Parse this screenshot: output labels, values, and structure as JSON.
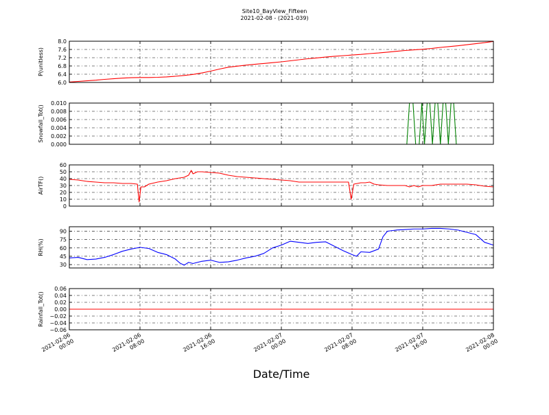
{
  "figure": {
    "title": "Site10_BayView_Fifteen",
    "subtitle": "2021-02-08 - (2021-039)",
    "xlabel": "Date/Time",
    "x_ticks": [
      [
        "2021-02-06",
        "00:00"
      ],
      [
        "2021-02-06",
        "08:00"
      ],
      [
        "2021-02-06",
        "16:00"
      ],
      [
        "2021-02-07",
        "00:00"
      ],
      [
        "2021-02-07",
        "08:00"
      ],
      [
        "2021-02-07",
        "16:00"
      ],
      [
        "2021-02-08",
        "00:00"
      ]
    ]
  },
  "chart_data": [
    {
      "type": "line",
      "ylabel": "P(unitless)",
      "xlim": [
        0,
        48
      ],
      "ylim": [
        6.0,
        8.0
      ],
      "yticks": [
        "6.0",
        "6.4",
        "6.8",
        "7.2",
        "7.6",
        "8.0"
      ],
      "ytick_values": [
        6.0,
        6.4,
        6.8,
        7.2,
        7.6,
        8.0
      ],
      "grid": true,
      "series": [
        {
          "color": "#ff0000",
          "x": [
            0,
            1,
            2,
            3,
            4,
            5,
            6,
            7,
            8,
            9,
            10,
            11,
            12,
            13,
            14,
            15,
            16,
            17,
            18,
            19,
            20,
            21,
            22,
            23,
            24,
            25,
            26,
            27,
            28,
            29,
            30,
            31,
            32,
            33,
            34,
            35,
            36,
            37,
            38,
            39,
            40,
            41,
            42,
            43,
            44,
            45,
            46,
            47,
            48
          ],
          "y": [
            6.02,
            6.05,
            6.08,
            6.11,
            6.15,
            6.18,
            6.21,
            6.23,
            6.24,
            6.24,
            6.25,
            6.27,
            6.3,
            6.34,
            6.39,
            6.46,
            6.55,
            6.65,
            6.74,
            6.79,
            6.84,
            6.88,
            6.92,
            6.96,
            7.0,
            7.05,
            7.1,
            7.15,
            7.19,
            7.23,
            7.27,
            7.3,
            7.33,
            7.36,
            7.4,
            7.43,
            7.47,
            7.51,
            7.55,
            7.58,
            7.61,
            7.65,
            7.7,
            7.74,
            7.78,
            7.83,
            7.88,
            7.93,
            7.99
          ]
        }
      ]
    },
    {
      "type": "line",
      "ylabel": "Snowfall_Tot()",
      "xlim": [
        0,
        48
      ],
      "ylim": [
        0.0,
        0.01
      ],
      "yticks": [
        "0.000",
        "0.002",
        "0.004",
        "0.006",
        "0.008",
        "0.010"
      ],
      "ytick_values": [
        0.0,
        0.002,
        0.004,
        0.006,
        0.008,
        0.01
      ],
      "grid": true,
      "series": [
        {
          "color": "#008000",
          "x": [
            0,
            38.2,
            38.5,
            38.9,
            39.2,
            39.6,
            39.9,
            40.2,
            40.5,
            40.8,
            41.1,
            41.4,
            41.7,
            42.0,
            42.3,
            42.6,
            42.9,
            43.2,
            43.5,
            43.8,
            48
          ],
          "y": [
            0,
            0,
            0.01,
            0.01,
            0,
            0,
            0.01,
            0,
            0.01,
            0.01,
            0,
            0.01,
            0.01,
            0,
            0.01,
            0.01,
            0,
            0.01,
            0.01,
            0,
            0
          ]
        }
      ]
    },
    {
      "type": "line",
      "ylabel": "AirTF()",
      "xlim": [
        0,
        48
      ],
      "ylim": [
        0,
        60
      ],
      "yticks": [
        "0",
        "10",
        "20",
        "30",
        "40",
        "50",
        "60"
      ],
      "ytick_values": [
        0,
        10,
        20,
        30,
        40,
        50,
        60
      ],
      "grid": true,
      "series": [
        {
          "color": "#ff0000",
          "x": [
            0,
            1,
            2,
            3,
            4,
            5,
            6,
            7,
            7.7,
            7.9,
            8.1,
            8.5,
            9,
            10,
            11,
            12,
            13,
            13.5,
            13.8,
            14,
            14.5,
            15,
            16,
            17,
            18,
            19,
            20,
            21,
            22,
            23,
            24,
            25,
            26,
            27,
            28,
            29,
            30,
            31,
            31.6,
            31.9,
            32.2,
            32.6,
            33,
            33.5,
            34,
            34.5,
            35,
            36,
            37,
            38,
            38.5,
            39,
            39.5,
            40,
            41,
            42,
            43,
            44,
            45,
            46,
            47,
            48
          ],
          "y": [
            39,
            38,
            36,
            35,
            34,
            34,
            33,
            33,
            32,
            6,
            28,
            28,
            32,
            35,
            37,
            40,
            42,
            45,
            52,
            47,
            50,
            50,
            49,
            48,
            45,
            43,
            42,
            41,
            40,
            39,
            38,
            37,
            35,
            35,
            35,
            35,
            35,
            35,
            35,
            10,
            32,
            33,
            34,
            34,
            35,
            32,
            31,
            30,
            30,
            30,
            28,
            30,
            28,
            30,
            30,
            32,
            32,
            32,
            32,
            31,
            29,
            28
          ]
        }
      ]
    },
    {
      "type": "line",
      "ylabel": "RH(%)",
      "xlim": [
        0,
        48
      ],
      "ylim": [
        24,
        98
      ],
      "yticks": [
        "30",
        "45",
        "60",
        "75",
        "90"
      ],
      "ytick_values": [
        30,
        45,
        60,
        75,
        90
      ],
      "grid": true,
      "series": [
        {
          "color": "#0000ff",
          "x": [
            0,
            1,
            2,
            3,
            4,
            5,
            6,
            7,
            8,
            9,
            10,
            11,
            12,
            12.5,
            13,
            13.5,
            14,
            15,
            16,
            17,
            18,
            19,
            20,
            21,
            22,
            23,
            24,
            25,
            26,
            27,
            28,
            29,
            30,
            31,
            32,
            32.5,
            33,
            34,
            35,
            35.5,
            36,
            37,
            38,
            39,
            40,
            41,
            42,
            43,
            44,
            45,
            46,
            47,
            48
          ],
          "y": [
            42,
            43,
            39,
            40,
            43,
            48,
            54,
            58,
            61,
            59,
            52,
            48,
            40,
            33,
            29,
            34,
            32,
            36,
            38,
            34,
            35,
            38,
            42,
            45,
            50,
            60,
            65,
            72,
            70,
            68,
            70,
            71,
            63,
            55,
            48,
            45,
            53,
            52,
            58,
            80,
            90,
            92,
            93,
            94,
            94,
            95,
            95,
            94,
            92,
            88,
            84,
            70,
            65
          ]
        }
      ]
    },
    {
      "type": "line",
      "ylabel": "Rainfall_Tot()",
      "xlim": [
        0,
        48
      ],
      "ylim": [
        -0.06,
        0.06
      ],
      "yticks": [
        "−0.06",
        "−0.04",
        "−0.02",
        "0.00",
        "0.02",
        "0.04",
        "0.06"
      ],
      "ytick_values": [
        -0.06,
        -0.04,
        -0.02,
        0.0,
        0.02,
        0.04,
        0.06
      ],
      "grid": true,
      "series": [
        {
          "color": "#ff0000",
          "x": [
            0,
            48
          ],
          "y": [
            0,
            0
          ]
        }
      ]
    }
  ]
}
